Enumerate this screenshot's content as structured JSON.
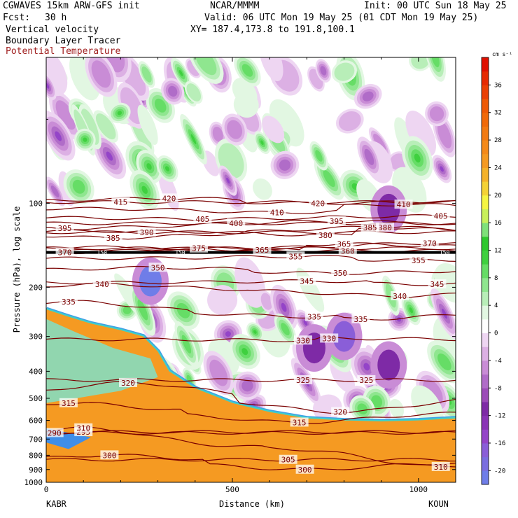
{
  "header": {
    "model": "CGWAVES 15km ARW-GFS init",
    "org": "NCAR/MMMM",
    "init": "Init: 00 UTC Sun 18 May 25",
    "fcst_label": "Fcst:",
    "fcst_value": "30 h",
    "valid": "Valid: 06 UTC Mon 19 May 25 (01 CDT Mon 19 May 25)",
    "field1": "Vertical velocity",
    "xy": "XY= 187.4,173.8 to 191.8,100.1",
    "field2": "Boundary Layer Tracer",
    "field3": "Potential Temperature"
  },
  "colors": {
    "theta_contour": "#7a0000",
    "red_title": "#a02020"
  },
  "chart_data": {
    "type": "heatmap",
    "title": "Vertical velocity cross-section",
    "xlabel": "Distance (km)",
    "ylabel": "Pressure (hPa), log scale",
    "xlim": [
      0,
      1100
    ],
    "ylim": [
      1000,
      30
    ],
    "x_ticks": [
      0,
      500,
      1000
    ],
    "y_ticks": [
      100,
      200,
      300,
      400,
      500,
      600,
      700,
      800,
      900,
      1000
    ],
    "endpoint_left": "KABR",
    "endpoint_right": "KOUN",
    "colorbar": {
      "unit": "cm s⁻¹",
      "levels": [
        -22,
        -20,
        -18,
        -16,
        -14,
        -12,
        -10,
        -8,
        -6,
        -4,
        -2,
        2,
        4,
        6,
        8,
        10,
        12,
        14,
        16,
        18,
        20,
        22,
        24,
        26,
        28,
        30,
        32,
        34,
        36,
        38,
        40
      ],
      "labels": [
        -20,
        -16,
        -12,
        -8,
        -4,
        0,
        4,
        8,
        12,
        16,
        20,
        24,
        28,
        32,
        36
      ],
      "colors": [
        "#6f7de8",
        "#7a6ee0",
        "#8a5ed8",
        "#9444c8",
        "#8a34b6",
        "#7e2aa6",
        "#9c4bb8",
        "#b06cc8",
        "#c98cd6",
        "#dcb0e4",
        "#eed6f2",
        "#ffffff",
        "#e2f7e2",
        "#b8eeb8",
        "#8fe68f",
        "#66dd66",
        "#3fd03f",
        "#2ec82e",
        "#7fe07a",
        "#c8f05a",
        "#f5f542",
        "#f4d236",
        "#f4b22a",
        "#f59a22",
        "#f48a1a",
        "#f27a12",
        "#f06a0a",
        "#ee5a06",
        "#ea4004",
        "#e62a02",
        "#e01000"
      ]
    },
    "theta_labels": [
      {
        "x": 22,
        "p": 665,
        "value": 290
      },
      {
        "x": 100,
        "p": 660,
        "value": 295
      },
      {
        "x": 170,
        "p": 800,
        "value": 300
      },
      {
        "x": 695,
        "p": 900,
        "value": 300
      },
      {
        "x": 650,
        "p": 830,
        "value": 305
      },
      {
        "x": 1060,
        "p": 880,
        "value": 310
      },
      {
        "x": 100,
        "p": 640,
        "value": 310
      },
      {
        "x": 60,
        "p": 520,
        "value": 315
      },
      {
        "x": 680,
        "p": 610,
        "value": 315
      },
      {
        "x": 790,
        "p": 560,
        "value": 320
      },
      {
        "x": 220,
        "p": 440,
        "value": 320
      },
      {
        "x": 690,
        "p": 430,
        "value": 325
      },
      {
        "x": 860,
        "p": 430,
        "value": 325
      },
      {
        "x": 690,
        "p": 310,
        "value": 330
      },
      {
        "x": 760,
        "p": 305,
        "value": 330
      },
      {
        "x": 720,
        "p": 255,
        "value": 335
      },
      {
        "x": 845,
        "p": 260,
        "value": 335
      },
      {
        "x": 60,
        "p": 225,
        "value": 335
      },
      {
        "x": 950,
        "p": 215,
        "value": 340
      },
      {
        "x": 150,
        "p": 195,
        "value": 340
      },
      {
        "x": 1050,
        "p": 195,
        "value": 345
      },
      {
        "x": 700,
        "p": 190,
        "value": 345
      },
      {
        "x": 790,
        "p": 178,
        "value": 350
      },
      {
        "x": 300,
        "p": 170,
        "value": 350
      },
      {
        "x": 670,
        "p": 155,
        "value": 355
      },
      {
        "x": 1000,
        "p": 160,
        "value": 355
      },
      {
        "x": 810,
        "p": 148,
        "value": 360
      },
      {
        "x": 580,
        "p": 147,
        "value": 365
      },
      {
        "x": 800,
        "p": 140,
        "value": 365
      },
      {
        "x": 50,
        "p": 150,
        "value": 370
      },
      {
        "x": 1030,
        "p": 139,
        "value": 370
      },
      {
        "x": 410,
        "p": 145,
        "value": 375
      },
      {
        "x": 750,
        "p": 130,
        "value": 380
      },
      {
        "x": 910,
        "p": 122,
        "value": 380
      },
      {
        "x": 180,
        "p": 133,
        "value": 385
      },
      {
        "x": 870,
        "p": 122,
        "value": 385
      },
      {
        "x": 270,
        "p": 127,
        "value": 390
      },
      {
        "x": 50,
        "p": 123,
        "value": 395
      },
      {
        "x": 780,
        "p": 116,
        "value": 395
      },
      {
        "x": 510,
        "p": 118,
        "value": 400
      },
      {
        "x": 420,
        "p": 114,
        "value": 405
      },
      {
        "x": 1060,
        "p": 111,
        "value": 405
      },
      {
        "x": 620,
        "p": 108,
        "value": 410
      },
      {
        "x": 960,
        "p": 101,
        "value": 410
      },
      {
        "x": 200,
        "p": 99,
        "value": 415
      },
      {
        "x": 730,
        "p": 100,
        "value": 420
      },
      {
        "x": 330,
        "p": 96,
        "value": 420
      }
    ],
    "tropopause_label": "150"
  }
}
